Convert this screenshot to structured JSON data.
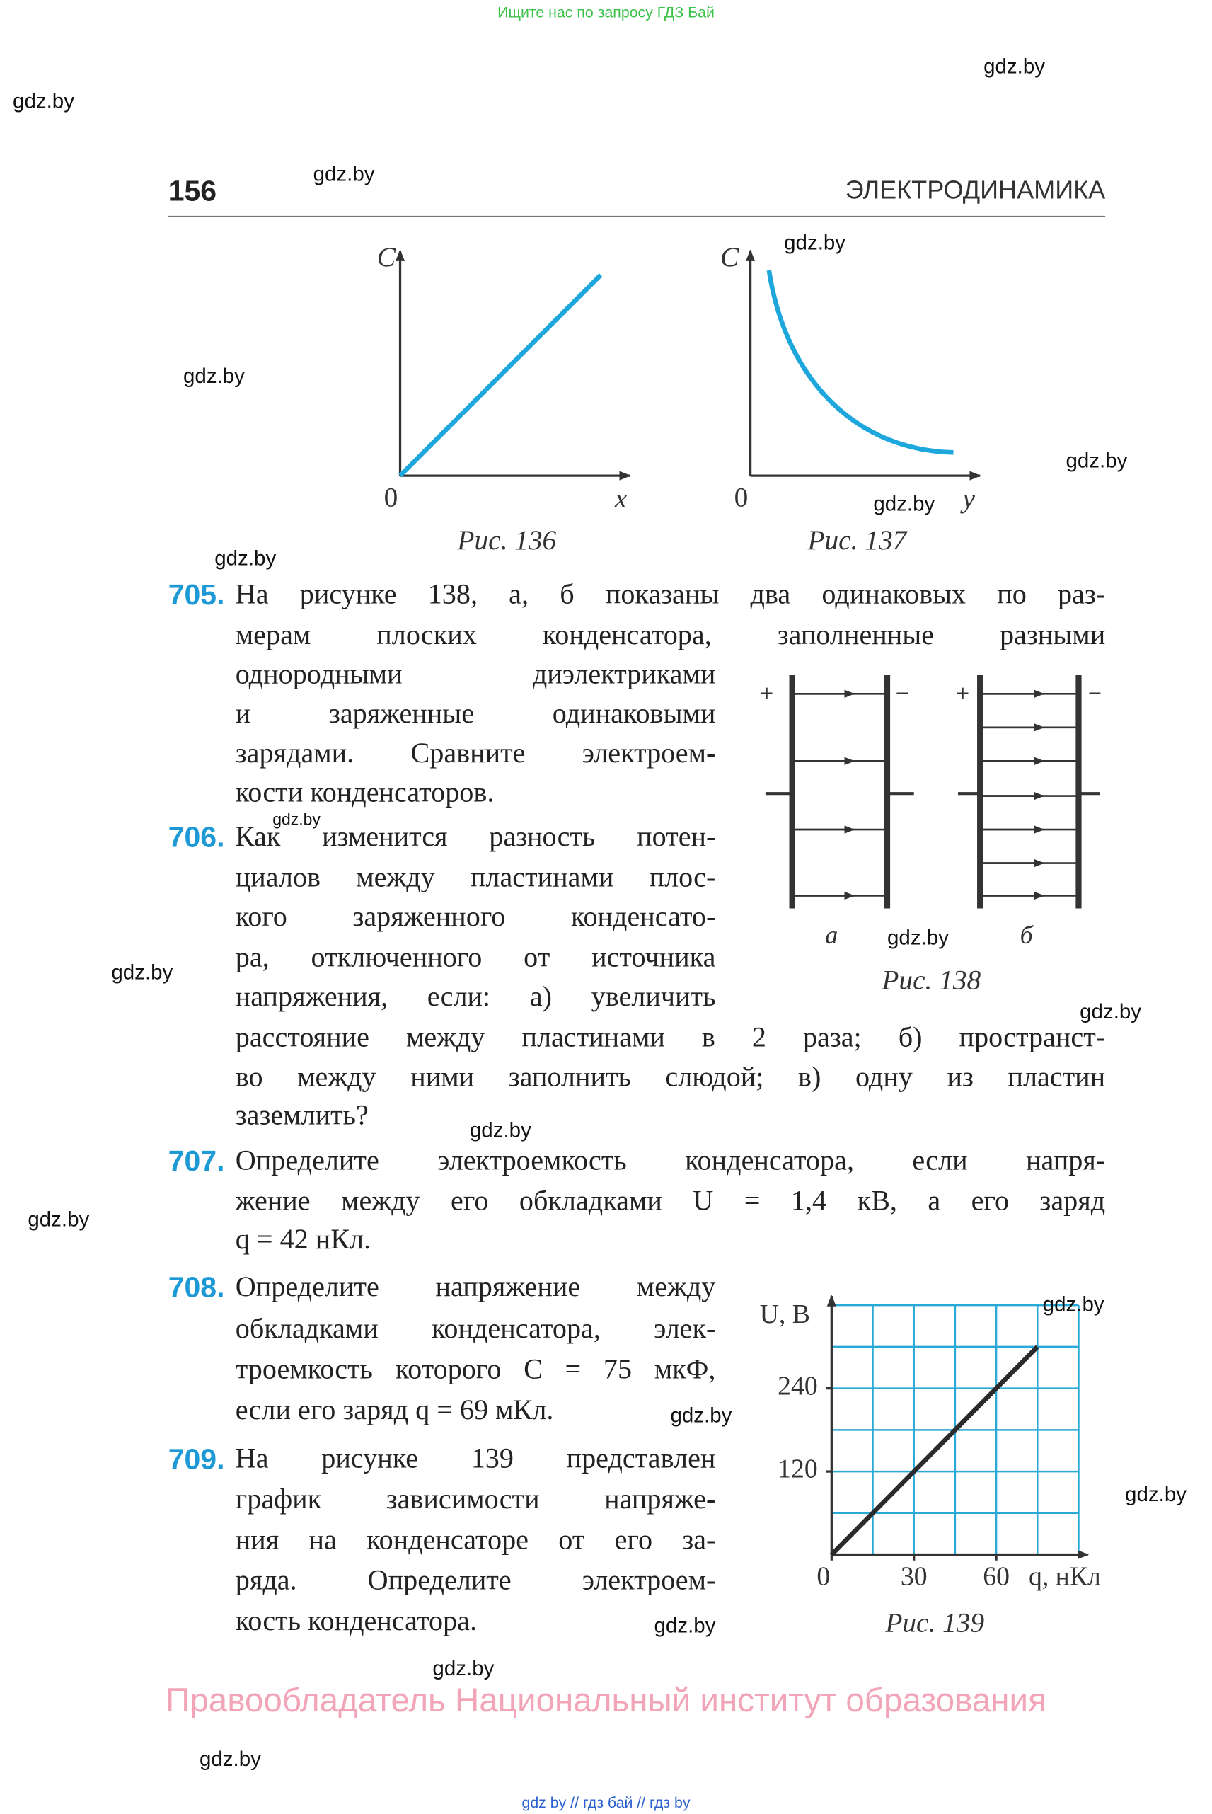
{
  "top_banner": "Ищите нас по запросу ГДЗ Бай",
  "watermarks": [
    "gdz.by",
    "gdz.by",
    "gdz.by",
    "gdz.by",
    "gdz.by",
    "gdz.by",
    "gdz.by",
    "gdz.by",
    "gdz.by",
    "gdz.by",
    "gdz.by",
    "gdz.by",
    "gdz.by",
    "gdz.by",
    "gdz.by",
    "gdz.by",
    "gdz.by",
    "gdz.by",
    "gdz.by",
    "gdz.by"
  ],
  "header": {
    "page_number": "156",
    "section": "ЭЛЕКТРОДИНАМИКА"
  },
  "figures": [
    {
      "caption": "Рис. 136",
      "y_label": "C",
      "x_label": "x",
      "origin": "0"
    },
    {
      "caption": "Рис. 137",
      "y_label": "C",
      "x_label": "y",
      "origin": "0"
    },
    {
      "caption": "Рис. 138",
      "plus": "+",
      "minus": "−",
      "labels": [
        "а",
        "б"
      ]
    }
  ],
  "problems": [
    {
      "number": "705.",
      "lines": [
        "На рисунке 138, а, б показаны два одинаковых по раз-",
        "мерам плоских конденсатора, заполненные разными",
        "однородными диэлектриками",
        "и заряженные одинаковыми",
        "зарядами. Сравните электроем-",
        "кости конденсаторов."
      ]
    },
    {
      "number": "706.",
      "lines": [
        "Как изменится разность потен-",
        "циалов между пластинами плос-",
        "кого заряженного конденсато-",
        "ра, отключенного от источника",
        "напряжения, если: а) увеличить",
        "расстояние между пластинами в 2 раза; б) пространст-",
        "во между ними заполнить слюдой; в) одну из пластин",
        "заземлить?"
      ]
    },
    {
      "number": "707.",
      "lines": [
        "Определите электроемкость конденсатора, если напря-",
        "жение между его обкладками U = 1,4 кВ, а его заряд",
        "q = 42 нКл."
      ]
    },
    {
      "number": "708.",
      "lines": [
        "Определите напряжение между",
        "обкладками конденсатора, элек-",
        "троемкость которого C = 75 мкФ,",
        "если его заряд q = 69 мКл."
      ]
    },
    {
      "number": "709.",
      "lines": [
        "На рисунке 139 представлен",
        "график зависимости напряже-",
        "ния на конденсаторе от его за-",
        "ряда. Определите электроем-",
        "кость конденсатора."
      ]
    }
  ],
  "chart_data": {
    "type": "line",
    "caption": "Рис. 139",
    "y_label": "U, В",
    "x_label": "q, нКл",
    "x": [
      0,
      75
    ],
    "values": [
      0,
      300
    ],
    "color": "#2b2b2b",
    "xlim": [
      0,
      90
    ],
    "ylim": [
      0,
      360
    ],
    "xticks": [
      0,
      30,
      60
    ],
    "yticks": [
      120,
      240
    ],
    "grid": true,
    "grid_color": "#29a9d6",
    "x_grid": [
      15,
      30,
      45,
      60,
      75,
      90
    ],
    "y_grid": [
      60,
      120,
      180,
      240,
      300,
      360
    ]
  },
  "footer": {
    "rights": "Правообладатель Национальный институт образования",
    "links": "gdz by // гдз бай // гдз by"
  }
}
